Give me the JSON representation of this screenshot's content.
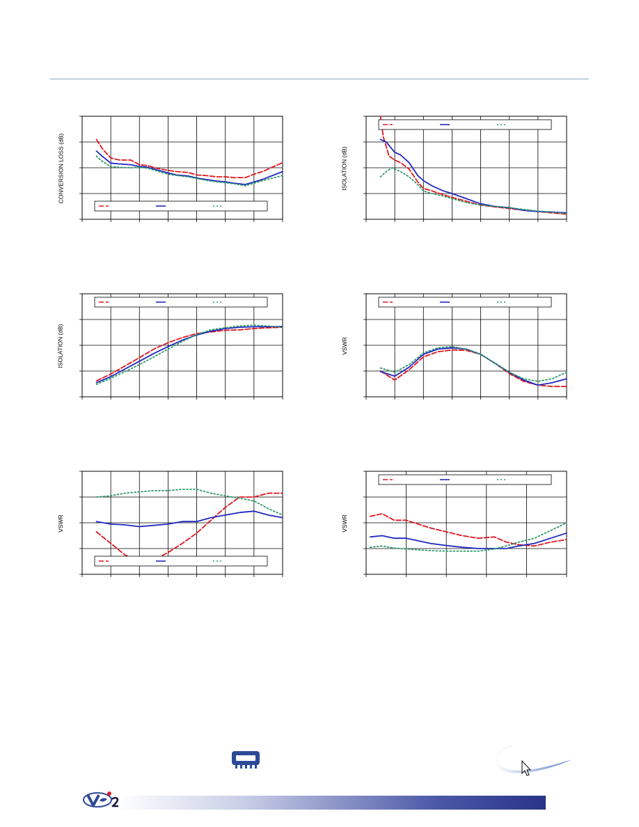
{
  "colors": {
    "red_dashed": "#e0151e",
    "blue_solid": "#1f27c0",
    "green_dotted": "#2e9a6a",
    "grid": "#000000",
    "rule": "#8aa6c8",
    "footer_bar": "#2a3488"
  },
  "chart_data": [
    {
      "type": "line",
      "ylabel": "CONVERSION LOSS (dB)",
      "ylim": [
        0,
        4
      ],
      "xlim": [
        0,
        7
      ],
      "grid": true,
      "legend_position": "bottom",
      "series": [
        {
          "style": "red_dashed",
          "x": [
            0.5,
            0.7,
            1,
            1.3,
            1.7,
            2,
            2.3,
            2.6,
            3,
            3.3,
            3.7,
            4,
            4.3,
            4.7,
            5,
            5.3,
            5.7,
            6,
            6.3,
            7
          ],
          "y": [
            3.1,
            2.75,
            2.38,
            2.3,
            2.3,
            2.12,
            2.08,
            1.98,
            1.9,
            1.85,
            1.82,
            1.72,
            1.7,
            1.65,
            1.65,
            1.62,
            1.62,
            1.75,
            1.85,
            2.2
          ]
        },
        {
          "style": "blue_solid",
          "x": [
            0.5,
            0.7,
            1,
            1.3,
            1.7,
            2,
            2.3,
            2.6,
            3,
            3.3,
            3.7,
            4,
            4.3,
            4.7,
            5,
            5.3,
            5.7,
            6,
            6.3,
            7
          ],
          "y": [
            2.65,
            2.45,
            2.18,
            2.15,
            2.12,
            2.05,
            2.02,
            1.92,
            1.8,
            1.72,
            1.68,
            1.6,
            1.55,
            1.48,
            1.45,
            1.4,
            1.35,
            1.45,
            1.55,
            1.85
          ]
        },
        {
          "style": "green_dotted",
          "x": [
            0.5,
            0.7,
            1,
            1.3,
            1.7,
            2,
            2.3,
            2.6,
            3,
            3.3,
            3.7,
            4,
            4.3,
            4.7,
            5,
            5.3,
            5.7,
            6,
            6.3,
            7
          ],
          "y": [
            2.45,
            2.25,
            2.05,
            2.02,
            2.0,
            2.02,
            1.98,
            1.88,
            1.75,
            1.7,
            1.65,
            1.58,
            1.52,
            1.45,
            1.42,
            1.38,
            1.3,
            1.4,
            1.5,
            1.7
          ]
        }
      ]
    },
    {
      "type": "line",
      "ylabel": "ISOLATION (dB)",
      "ylim": [
        0,
        4
      ],
      "xlim": [
        0,
        7
      ],
      "grid": true,
      "legend_position": "top",
      "series": [
        {
          "style": "red_dashed",
          "x": [
            0.5,
            0.6,
            0.8,
            1,
            1.2,
            1.5,
            1.8,
            2,
            2.3,
            2.7,
            3,
            3.5,
            4,
            4.5,
            5,
            5.5,
            6,
            6.5,
            7
          ],
          "y": [
            4.0,
            3.2,
            2.45,
            2.3,
            2.2,
            1.95,
            1.45,
            1.2,
            1.1,
            0.95,
            0.85,
            0.7,
            0.55,
            0.48,
            0.42,
            0.35,
            0.3,
            0.25,
            0.2
          ]
        },
        {
          "style": "blue_solid",
          "x": [
            0.5,
            0.7,
            1,
            1.2,
            1.5,
            1.8,
            2,
            2.3,
            2.7,
            3,
            3.5,
            4,
            4.5,
            5,
            5.5,
            6,
            6.5,
            7
          ],
          "y": [
            3.1,
            3.0,
            2.6,
            2.5,
            2.2,
            1.7,
            1.5,
            1.3,
            1.1,
            1.0,
            0.8,
            0.6,
            0.5,
            0.45,
            0.35,
            0.3,
            0.28,
            0.25
          ]
        },
        {
          "style": "green_dotted",
          "x": [
            0.5,
            0.7,
            0.9,
            1.2,
            1.5,
            1.8,
            2,
            2.3,
            2.7,
            3,
            3.5,
            4,
            4.5,
            5,
            5.5,
            6,
            6.5,
            7
          ],
          "y": [
            1.65,
            1.85,
            2.0,
            1.85,
            1.65,
            1.35,
            1.1,
            1.0,
            0.9,
            0.8,
            0.65,
            0.55,
            0.5,
            0.45,
            0.38,
            0.32,
            0.28,
            0.22
          ]
        }
      ]
    },
    {
      "type": "line",
      "ylabel": "ISOLATION (dB)",
      "ylim": [
        0,
        4
      ],
      "xlim": [
        0,
        7
      ],
      "grid": true,
      "legend_position": "top",
      "series": [
        {
          "style": "red_dashed",
          "x": [
            0.5,
            1,
            1.5,
            2,
            2.5,
            3,
            3.5,
            4,
            4.5,
            5,
            5.5,
            6,
            6.5,
            7
          ],
          "y": [
            0.62,
            0.88,
            1.2,
            1.52,
            1.85,
            2.1,
            2.3,
            2.45,
            2.52,
            2.58,
            2.6,
            2.65,
            2.68,
            2.7
          ]
        },
        {
          "style": "blue_solid",
          "x": [
            0.5,
            1,
            1.5,
            2,
            2.5,
            3,
            3.5,
            4,
            4.5,
            5,
            5.5,
            6,
            6.5,
            7
          ],
          "y": [
            0.55,
            0.78,
            1.08,
            1.38,
            1.68,
            1.95,
            2.2,
            2.4,
            2.55,
            2.65,
            2.7,
            2.72,
            2.72,
            2.73
          ]
        },
        {
          "style": "green_dotted",
          "x": [
            0.5,
            1,
            1.5,
            2,
            2.5,
            3,
            3.5,
            4,
            4.5,
            5,
            5.5,
            6,
            6.5,
            7
          ],
          "y": [
            0.48,
            0.72,
            0.98,
            1.25,
            1.55,
            1.85,
            2.15,
            2.42,
            2.6,
            2.68,
            2.75,
            2.78,
            2.75,
            2.7
          ]
        }
      ]
    },
    {
      "type": "line",
      "ylabel": "VSWR",
      "ylim": [
        0,
        4
      ],
      "xlim": [
        0,
        7
      ],
      "grid": true,
      "legend_position": "top",
      "series": [
        {
          "style": "red_dashed",
          "x": [
            0.5,
            1,
            1.5,
            2,
            2.5,
            3,
            3.5,
            4,
            4.5,
            5,
            5.5,
            6,
            6.5,
            7
          ],
          "y": [
            1.0,
            0.65,
            1.05,
            1.55,
            1.75,
            1.82,
            1.8,
            1.65,
            1.3,
            0.9,
            0.6,
            0.45,
            0.4,
            0.4
          ]
        },
        {
          "style": "blue_solid",
          "x": [
            0.5,
            1,
            1.5,
            2,
            2.5,
            3,
            3.5,
            4,
            4.5,
            5,
            5.5,
            6,
            6.5,
            7
          ],
          "y": [
            0.98,
            0.8,
            1.15,
            1.65,
            1.85,
            1.9,
            1.85,
            1.65,
            1.3,
            0.95,
            0.65,
            0.45,
            0.55,
            0.7
          ]
        },
        {
          "style": "green_dotted",
          "x": [
            0.5,
            1,
            1.5,
            2,
            2.5,
            3,
            3.5,
            4,
            4.5,
            5,
            5.5,
            6,
            6.5,
            7
          ],
          "y": [
            1.12,
            0.95,
            1.25,
            1.7,
            1.9,
            1.95,
            1.85,
            1.65,
            1.3,
            0.95,
            0.7,
            0.6,
            0.7,
            0.95
          ]
        }
      ]
    },
    {
      "type": "line",
      "ylabel": "VSWR",
      "ylim": [
        0,
        4
      ],
      "xlim": [
        0,
        7
      ],
      "grid": true,
      "legend_position": "bottom",
      "series": [
        {
          "style": "red_dashed",
          "x": [
            0.5,
            1,
            1.5,
            2,
            2.5,
            3,
            3.5,
            4,
            4.5,
            5,
            5.5,
            6,
            6.5,
            7
          ],
          "y": [
            1.65,
            1.2,
            0.75,
            0.5,
            0.55,
            0.85,
            1.2,
            1.6,
            2.1,
            2.6,
            3.0,
            3.0,
            3.15,
            3.15
          ]
        },
        {
          "style": "blue_solid",
          "x": [
            0.5,
            1,
            1.5,
            2,
            2.5,
            3,
            3.5,
            4,
            4.5,
            5,
            5.5,
            6,
            6.5,
            7
          ],
          "y": [
            2.05,
            1.95,
            1.92,
            1.85,
            1.9,
            1.95,
            2.05,
            2.05,
            2.2,
            2.3,
            2.4,
            2.45,
            2.3,
            2.2
          ]
        },
        {
          "style": "green_dotted",
          "x": [
            0.5,
            1,
            1.5,
            2,
            2.5,
            3,
            3.5,
            4,
            4.5,
            5,
            5.5,
            6,
            6.5,
            7
          ],
          "y": [
            3.0,
            3.05,
            3.15,
            3.2,
            3.25,
            3.25,
            3.3,
            3.3,
            3.15,
            3.05,
            2.95,
            2.85,
            2.55,
            2.3
          ]
        }
      ]
    },
    {
      "type": "line",
      "ylabel": "VSWR",
      "ylim": [
        0,
        4
      ],
      "xlim": [
        0,
        5
      ],
      "grid": true,
      "legend_position": "top",
      "series": [
        {
          "style": "red_dashed",
          "x": [
            0.1,
            0.4,
            0.7,
            1,
            1.3,
            1.6,
            2,
            2.4,
            2.8,
            3.2,
            3.5,
            3.8,
            4.2,
            4.6,
            5
          ],
          "y": [
            2.25,
            2.35,
            2.1,
            2.1,
            1.95,
            1.8,
            1.65,
            1.5,
            1.4,
            1.45,
            1.25,
            1.15,
            1.1,
            1.25,
            1.35
          ]
        },
        {
          "style": "blue_solid",
          "x": [
            0.1,
            0.4,
            0.7,
            1,
            1.3,
            1.6,
            2,
            2.4,
            2.8,
            3.2,
            3.5,
            3.8,
            4.2,
            4.6,
            5
          ],
          "y": [
            1.45,
            1.5,
            1.4,
            1.4,
            1.3,
            1.2,
            1.12,
            1.05,
            1.0,
            1.0,
            1.0,
            1.1,
            1.2,
            1.4,
            1.6
          ]
        },
        {
          "style": "green_dotted",
          "x": [
            0.1,
            0.4,
            0.7,
            1,
            1.3,
            1.6,
            2,
            2.4,
            2.8,
            3.2,
            3.5,
            3.8,
            4.2,
            4.6,
            5
          ],
          "y": [
            1.05,
            1.1,
            1.02,
            0.98,
            0.95,
            0.92,
            0.9,
            0.9,
            0.9,
            0.98,
            1.1,
            1.25,
            1.4,
            1.7,
            2.0
          ]
        }
      ]
    }
  ]
}
